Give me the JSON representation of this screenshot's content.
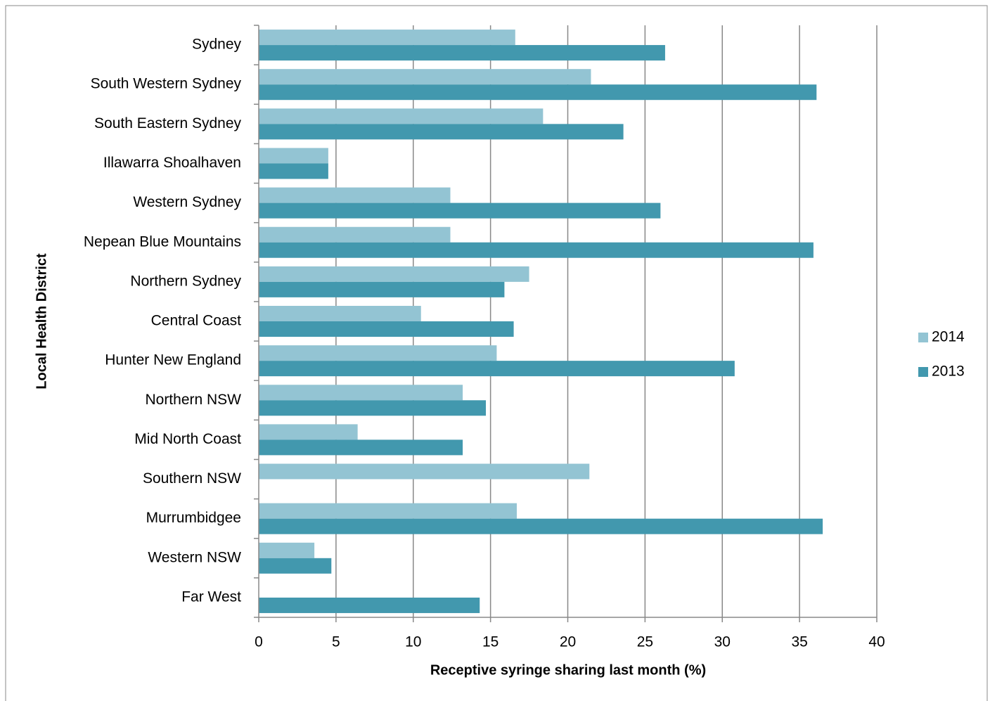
{
  "chart_data": {
    "type": "bar",
    "orientation": "horizontal",
    "y_axis_label": "Local Health District",
    "x_axis_label": "Receptive syringe sharing last month (%)",
    "categories": [
      "Sydney",
      "South Western Sydney",
      "South Eastern Sydney",
      "Illawarra Shoalhaven",
      "Western Sydney",
      "Nepean Blue Mountains",
      "Northern Sydney",
      "Central Coast",
      "Hunter New England",
      "Northern NSW",
      "Mid North Coast",
      "Southern NSW",
      "Murrumbidgee",
      "Western NSW",
      "Far West"
    ],
    "series": [
      {
        "name": "2014",
        "color": "#93c4d3",
        "values": [
          16.6,
          21.5,
          18.4,
          4.5,
          12.4,
          12.4,
          17.5,
          10.5,
          15.4,
          13.2,
          6.4,
          21.4,
          16.7,
          3.6,
          null
        ]
      },
      {
        "name": "2013",
        "color": "#4298ae",
        "values": [
          26.3,
          36.1,
          23.6,
          4.5,
          26.0,
          35.9,
          15.9,
          16.5,
          30.8,
          14.7,
          13.2,
          null,
          36.5,
          4.7,
          14.3
        ]
      }
    ],
    "xlim": [
      0,
      40
    ],
    "xticks": [
      0,
      5,
      10,
      15,
      20,
      25,
      30,
      35,
      40
    ],
    "grid": true,
    "legend": "right"
  }
}
